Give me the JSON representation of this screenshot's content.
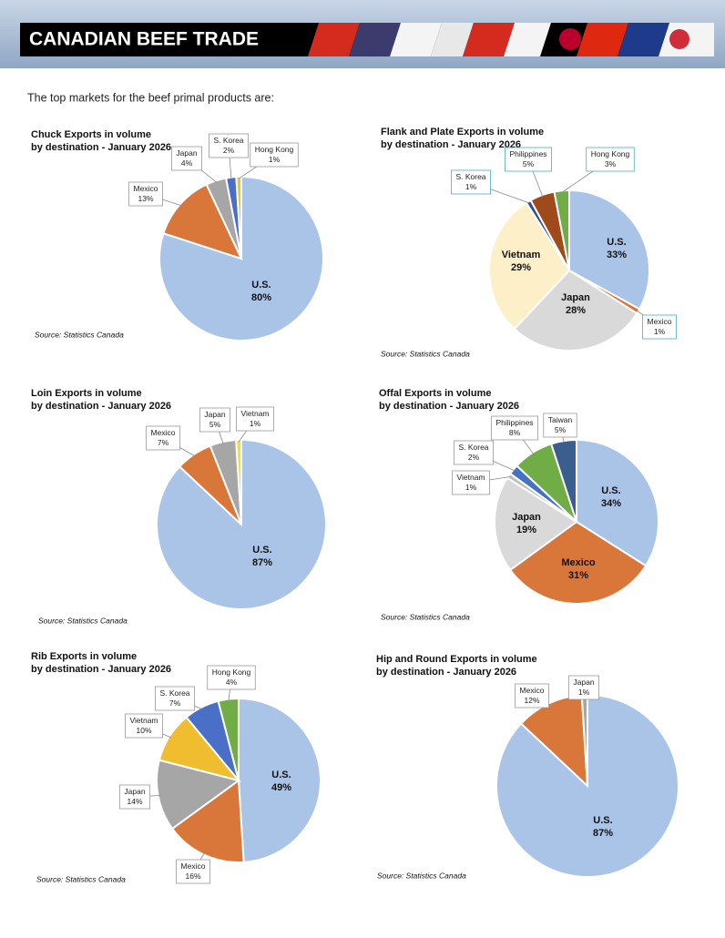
{
  "header": {
    "title": "CANADIAN BEEF TRADE"
  },
  "intro": "The top markets for the beef primal products are:",
  "chart_data": [
    {
      "type": "pie",
      "title": "Chuck Exports in volume",
      "subtitle": "by destination - January 2026",
      "source": "Source: Statistics Canada",
      "categories": [
        "U.S.",
        "Mexico",
        "Japan",
        "S. Korea",
        "Hong Kong"
      ],
      "values": [
        80,
        13,
        4,
        2,
        1
      ],
      "value_labels": [
        "80%",
        "13%",
        "4%",
        "2%",
        "1%"
      ],
      "colors": [
        "#a9c4e6",
        "#d9773a",
        "#a6a6a6",
        "#4a6fc7",
        "#f2c12e"
      ]
    },
    {
      "type": "pie",
      "title": "Flank and Plate Exports in volume",
      "subtitle": "by destination - January 2026",
      "source": "Source: Statistics Canada",
      "categories": [
        "U.S.",
        "Mexico",
        "Japan",
        "Vietnam",
        "S. Korea",
        "Philippines",
        "Hong Kong"
      ],
      "values": [
        33,
        1,
        28,
        29,
        1,
        5,
        3
      ],
      "value_labels": [
        "33%",
        "1%",
        "28%",
        "29%",
        "1%",
        "5%",
        "3%"
      ],
      "colors": [
        "#a9c4e6",
        "#d9773a",
        "#d9d9d9",
        "#fdf0c8",
        "#2f4f8f",
        "#9e4a1a",
        "#70ad47"
      ]
    },
    {
      "type": "pie",
      "title": "Loin Exports in volume",
      "subtitle": "by destination - January 2026",
      "source": "Source: Statistics Canada",
      "categories": [
        "U.S.",
        "Mexico",
        "Japan",
        "Vietnam"
      ],
      "values": [
        87,
        7,
        5,
        1
      ],
      "value_labels": [
        "87%",
        "7%",
        "5%",
        "1%"
      ],
      "colors": [
        "#a9c4e6",
        "#d9773a",
        "#a6a6a6",
        "#f2e02a"
      ]
    },
    {
      "type": "pie",
      "title": "Offal Exports in volume",
      "subtitle": "by destination - January 2026",
      "source": "Source: Statistics Canada",
      "categories": [
        "U.S.",
        "Mexico",
        "Japan",
        "Vietnam",
        "S. Korea",
        "Philippines",
        "Taiwan"
      ],
      "values": [
        34,
        31,
        19,
        1,
        2,
        8,
        5
      ],
      "value_labels": [
        "34%",
        "31%",
        "19%",
        "1%",
        "2%",
        "8%",
        "5%"
      ],
      "colors": [
        "#a9c4e6",
        "#d9773a",
        "#d9d9d9",
        "#bfbfbf",
        "#4472c4",
        "#70ad47",
        "#3a5f8f"
      ]
    },
    {
      "type": "pie",
      "title": "Rib Exports in volume",
      "subtitle": "by destination - January 2026",
      "source": "Source: Statistics Canada",
      "categories": [
        "U.S.",
        "Mexico",
        "Japan",
        "Vietnam",
        "S. Korea",
        "Hong Kong"
      ],
      "values": [
        49,
        16,
        14,
        10,
        7,
        4
      ],
      "value_labels": [
        "49%",
        "16%",
        "14%",
        "10%",
        "7%",
        "4%"
      ],
      "colors": [
        "#a9c4e6",
        "#d9773a",
        "#a6a6a6",
        "#f0bd2e",
        "#4a6fc7",
        "#70ad47"
      ]
    },
    {
      "type": "pie",
      "title": "Hip and Round Exports in volume",
      "subtitle": "by destination - January 2026",
      "source": "Source: Statistics Canada",
      "categories": [
        "U.S.",
        "Mexico",
        "Japan"
      ],
      "values": [
        87,
        12,
        1
      ],
      "value_labels": [
        "87%",
        "12%",
        "1%"
      ],
      "colors": [
        "#a9c4e6",
        "#d9773a",
        "#a6a6a6"
      ]
    }
  ]
}
